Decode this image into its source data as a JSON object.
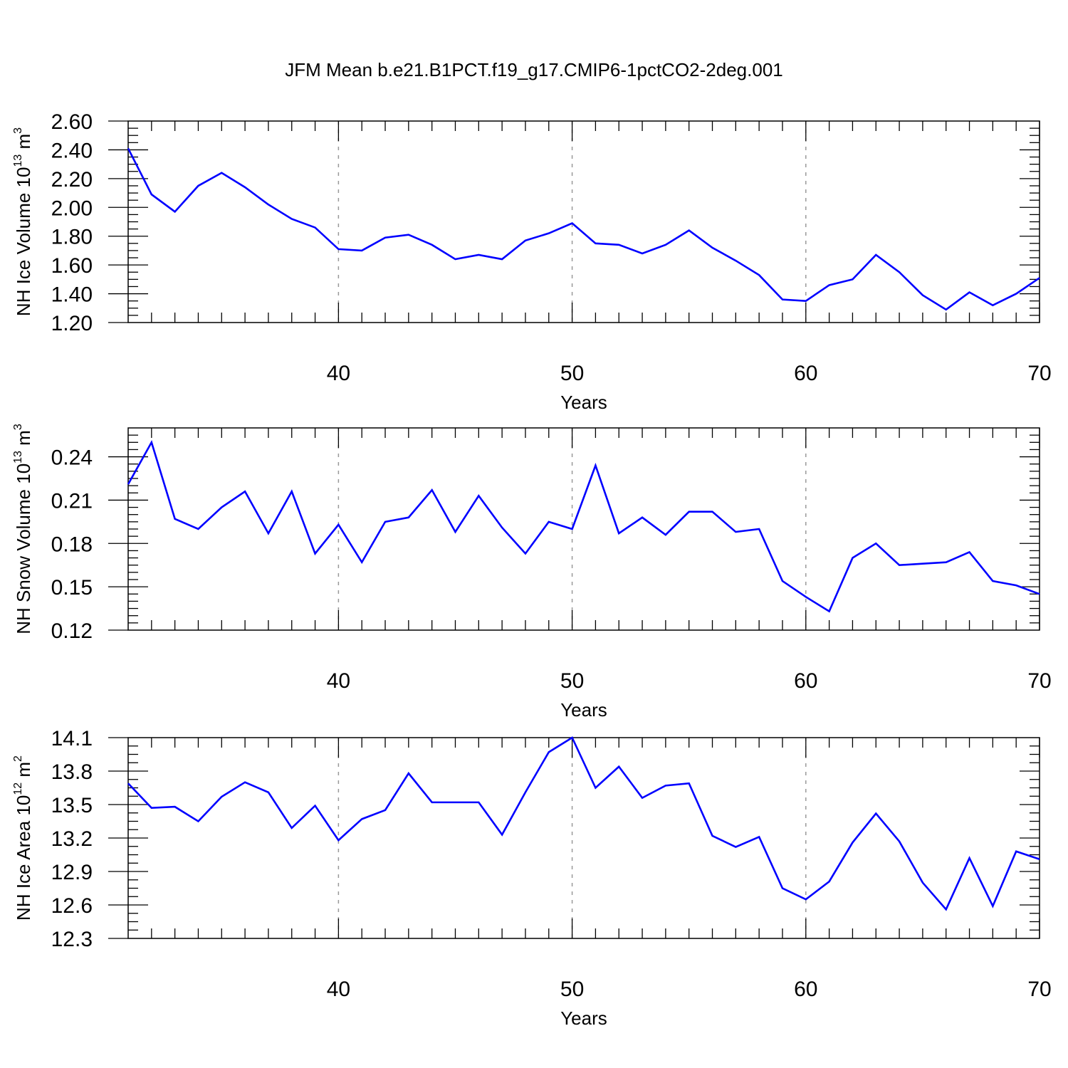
{
  "title": "JFM Mean b.e21.B1PCT.f19_g17.CMIP6-1pctCO2-2deg.001",
  "colors": {
    "line": "#0000ff",
    "axis": "#000000",
    "grid": "#999999"
  },
  "chart_data": [
    {
      "type": "line",
      "ylabel_main": "NH Ice Volume 10",
      "ylabel_exp": "13",
      "ylabel_unit": " m",
      "ylabel_unit_exp": "3",
      "xlabel": "Years",
      "xlim": [
        31,
        70
      ],
      "ylim": [
        1.2,
        2.6
      ],
      "x_ticks": [
        40,
        50,
        60,
        70
      ],
      "x_tick_labels": [
        "40",
        "50",
        "60",
        "70"
      ],
      "y_ticks": [
        1.2,
        1.4,
        1.6,
        1.8,
        2.0,
        2.2,
        2.4,
        2.6
      ],
      "y_tick_labels": [
        "1.20",
        "1.40",
        "1.60",
        "1.80",
        "2.00",
        "2.20",
        "2.40",
        "2.60"
      ],
      "y_minor_step": 0.05,
      "grid_x": [
        40,
        50,
        60
      ],
      "x": [
        31,
        32,
        33,
        34,
        35,
        36,
        37,
        38,
        39,
        40,
        41,
        42,
        43,
        44,
        45,
        46,
        47,
        48,
        49,
        50,
        51,
        52,
        53,
        54,
        55,
        56,
        57,
        58,
        59,
        60,
        61,
        62,
        63,
        64,
        65,
        66,
        67,
        68,
        69,
        70
      ],
      "y": [
        2.41,
        2.09,
        1.97,
        2.15,
        2.24,
        2.14,
        2.02,
        1.92,
        1.86,
        1.71,
        1.7,
        1.79,
        1.81,
        1.74,
        1.64,
        1.67,
        1.64,
        1.77,
        1.82,
        1.89,
        1.75,
        1.74,
        1.68,
        1.74,
        1.84,
        1.72,
        1.63,
        1.53,
        1.36,
        1.35,
        1.46,
        1.5,
        1.67,
        1.55,
        1.39,
        1.29,
        1.41,
        1.32,
        1.4,
        1.51
      ]
    },
    {
      "type": "line",
      "ylabel_main": "NH Snow Volume 10",
      "ylabel_exp": "13",
      "ylabel_unit": " m",
      "ylabel_unit_exp": "3",
      "xlabel": "Years",
      "xlim": [
        31,
        70
      ],
      "ylim": [
        0.12,
        0.26
      ],
      "x_ticks": [
        40,
        50,
        60,
        70
      ],
      "x_tick_labels": [
        "40",
        "50",
        "60",
        "70"
      ],
      "y_ticks": [
        0.12,
        0.15,
        0.18,
        0.21,
        0.24
      ],
      "y_tick_labels": [
        "0.12",
        "0.15",
        "0.18",
        "0.21",
        "0.24"
      ],
      "y_minor_step": 0.005,
      "grid_x": [
        40,
        50,
        60
      ],
      "x": [
        31,
        32,
        33,
        34,
        35,
        36,
        37,
        38,
        39,
        40,
        41,
        42,
        43,
        44,
        45,
        46,
        47,
        48,
        49,
        50,
        51,
        52,
        53,
        54,
        55,
        56,
        57,
        58,
        59,
        60,
        61,
        62,
        63,
        64,
        65,
        66,
        67,
        68,
        69,
        70
      ],
      "y": [
        0.221,
        0.25,
        0.197,
        0.19,
        0.205,
        0.216,
        0.187,
        0.216,
        0.173,
        0.193,
        0.167,
        0.195,
        0.198,
        0.217,
        0.188,
        0.213,
        0.191,
        0.173,
        0.195,
        0.19,
        0.234,
        0.187,
        0.198,
        0.186,
        0.202,
        0.202,
        0.188,
        0.19,
        0.154,
        0.143,
        0.133,
        0.17,
        0.18,
        0.165,
        0.166,
        0.167,
        0.174,
        0.154,
        0.151,
        0.145
      ]
    },
    {
      "type": "line",
      "ylabel_main": "NH Ice Area 10",
      "ylabel_exp": "12",
      "ylabel_unit": " m",
      "ylabel_unit_exp": "2",
      "xlabel": "Years",
      "xlim": [
        31,
        70
      ],
      "ylim": [
        12.3,
        14.1
      ],
      "x_ticks": [
        40,
        50,
        60,
        70
      ],
      "x_tick_labels": [
        "40",
        "50",
        "60",
        "70"
      ],
      "y_ticks": [
        12.3,
        12.6,
        12.9,
        13.2,
        13.5,
        13.8,
        14.1
      ],
      "y_tick_labels": [
        "12.3",
        "12.6",
        "12.9",
        "13.2",
        "13.5",
        "13.8",
        "14.1"
      ],
      "y_minor_step": 0.075,
      "grid_x": [
        40,
        50,
        60
      ],
      "x": [
        31,
        32,
        33,
        34,
        35,
        36,
        37,
        38,
        39,
        40,
        41,
        42,
        43,
        44,
        45,
        46,
        47,
        48,
        49,
        50,
        51,
        52,
        53,
        54,
        55,
        56,
        57,
        58,
        59,
        60,
        61,
        62,
        63,
        64,
        65,
        66,
        67,
        68,
        69,
        70
      ],
      "y": [
        13.69,
        13.47,
        13.48,
        13.35,
        13.57,
        13.7,
        13.61,
        13.29,
        13.49,
        13.18,
        13.37,
        13.45,
        13.78,
        13.52,
        13.52,
        13.52,
        13.23,
        13.61,
        13.97,
        14.1,
        13.65,
        13.84,
        13.56,
        13.67,
        13.69,
        13.22,
        13.12,
        13.21,
        12.75,
        12.65,
        12.81,
        13.16,
        13.42,
        13.17,
        12.8,
        12.56,
        13.02,
        12.59,
        13.08,
        13.01
      ]
    }
  ]
}
